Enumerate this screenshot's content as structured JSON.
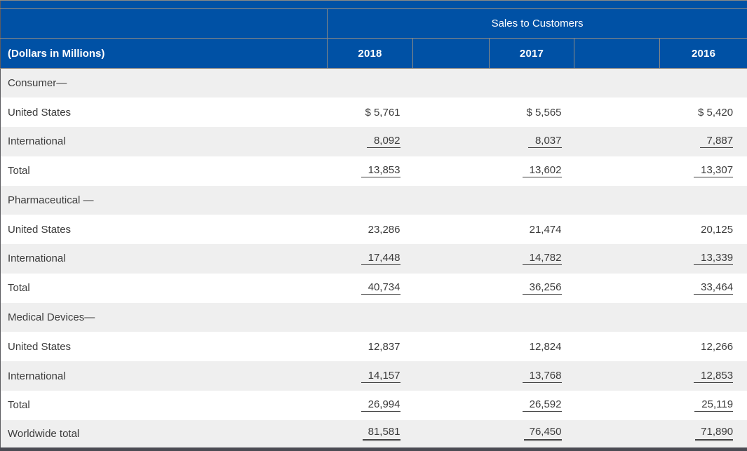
{
  "table": {
    "caption": "Sales to Customers",
    "unit_label": "(Dollars in Millions)",
    "years": [
      "2018",
      "2017",
      "2016"
    ],
    "sections": [
      {
        "heading": "Consumer—",
        "rows": [
          {
            "label": "United States",
            "values": [
              "$ 5,761",
              "$ 5,565",
              "$ 5,420"
            ]
          },
          {
            "label": "International",
            "values": [
              "8,092",
              "8,037",
              "7,887"
            ]
          },
          {
            "label": "Total",
            "values": [
              "13,853",
              "13,602",
              "13,307"
            ]
          }
        ]
      },
      {
        "heading": "Pharmaceutical —",
        "rows": [
          {
            "label": "United States",
            "values": [
              "23,286",
              "21,474",
              "20,125"
            ]
          },
          {
            "label": "International",
            "values": [
              "17,448",
              "14,782",
              "13,339"
            ]
          },
          {
            "label": "Total",
            "values": [
              "40,734",
              "36,256",
              "33,464"
            ]
          }
        ]
      },
      {
        "heading": "Medical Devices—",
        "rows": [
          {
            "label": "United States",
            "values": [
              "12,837",
              "12,824",
              "12,266"
            ]
          },
          {
            "label": "International",
            "values": [
              "14,157",
              "13,768",
              "12,853"
            ]
          },
          {
            "label": "Total",
            "values": [
              "26,994",
              "26,592",
              "25,119"
            ]
          }
        ]
      }
    ],
    "footer": {
      "label": "Worldwide total",
      "values": [
        "81,581",
        "76,450",
        "71,890"
      ]
    },
    "colors": {
      "header_blue": "#0051a5",
      "stripe_gray": "#efefef",
      "border_gray": "#8a8a85",
      "bottom_bar": "#4b4b53",
      "text": "#3c3c3c"
    }
  }
}
